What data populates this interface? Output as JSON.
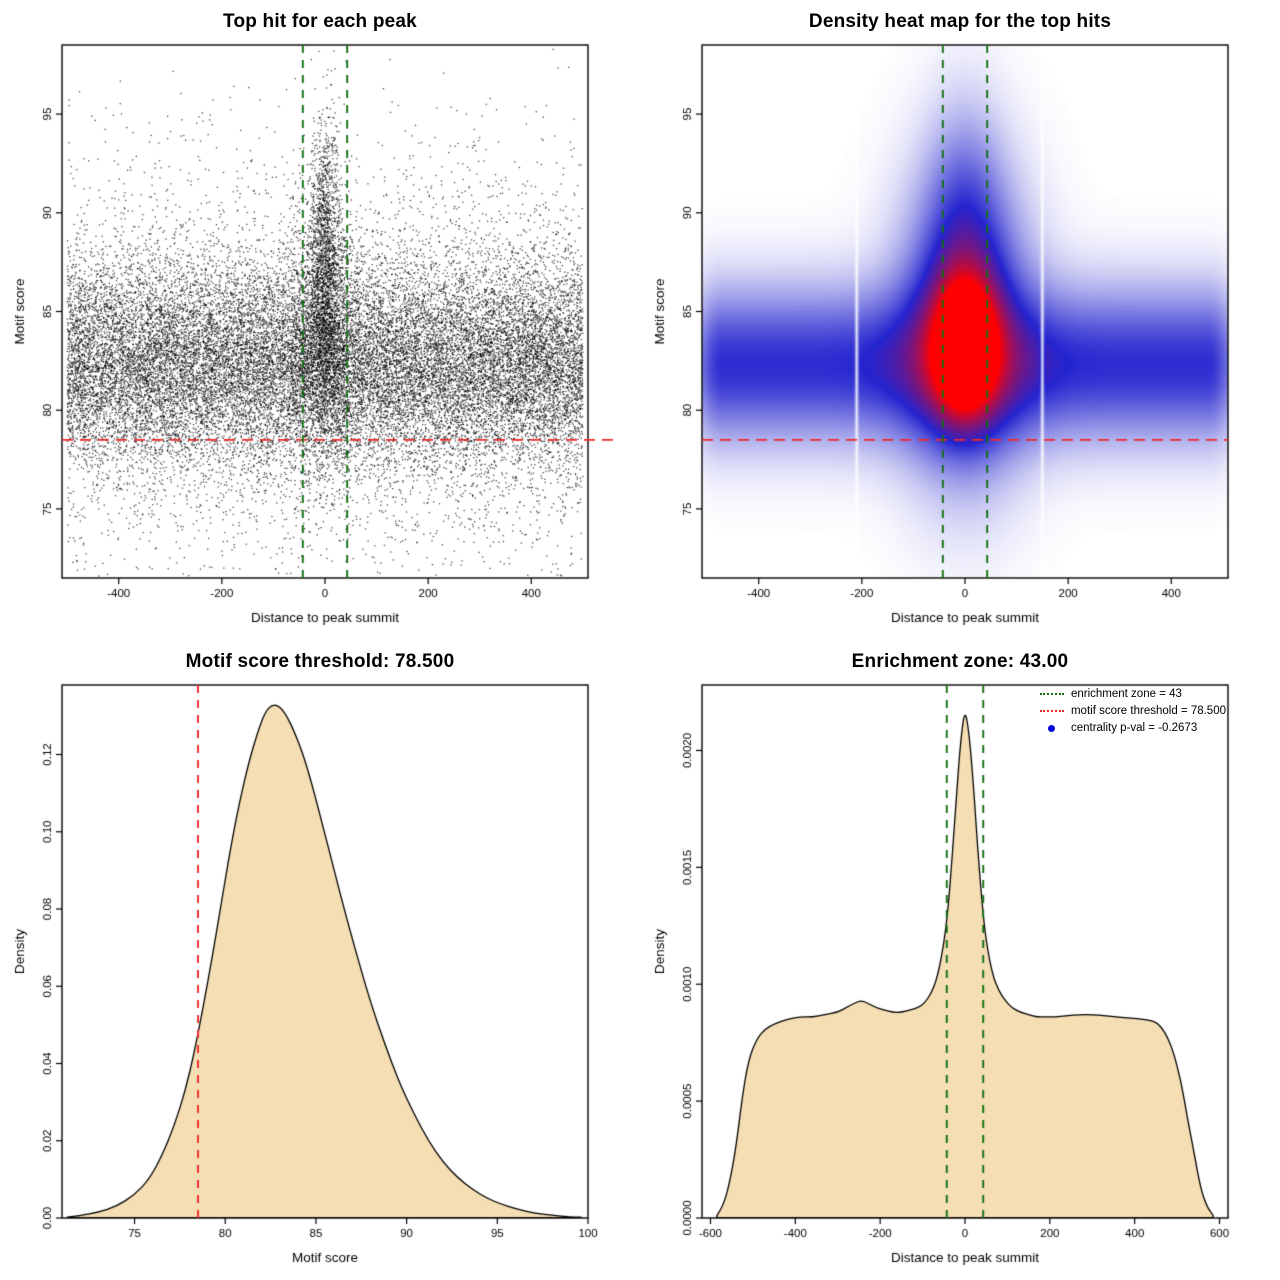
{
  "palette": {
    "background": "#ffffff",
    "point_color": "#000000",
    "red_line": "#ef2929",
    "green_line": "#127012",
    "blue_point": "#0000dd",
    "density_fill": "#f5deb3",
    "curve_stroke": "#000000",
    "heat_low": "#ffffff",
    "heat_mid": "#2424cf",
    "heat_high": "#ff0000"
  },
  "chart_data": [
    {
      "type": "scatter",
      "title": "Top hit for each peak",
      "xlabel": "Distance to peak summit",
      "ylabel": "Motif score",
      "xlim": [
        -510,
        510
      ],
      "ylim": [
        71.5,
        98.5
      ],
      "xticks": [
        -400,
        -200,
        0,
        200,
        400
      ],
      "yticks": [
        75,
        80,
        85,
        90,
        95
      ],
      "grid": false,
      "hline": {
        "y": 78.5,
        "style": "dashed",
        "color_key": "red_line",
        "meaning": "motif score threshold = 78.500"
      },
      "vlines": {
        "x": [
          -43,
          43
        ],
        "style": "dashed",
        "color_key": "green_line",
        "meaning": "enrichment zone = 43"
      },
      "points": {
        "seed": 11,
        "x_range": [
          -500,
          500
        ],
        "y_range": [
          71.6,
          98.4
        ],
        "background": {
          "n": 26000,
          "y_mean": 82.3,
          "y_sd": 2.6,
          "wide_frac": 0.18,
          "y_sd_wide": 5.6
        },
        "central": [
          {
            "n": 2200,
            "x_sd": 32,
            "y_mean": 83.6,
            "y_sd": 3.2
          },
          {
            "n": 1400,
            "x_sd": 15,
            "y_mean": 88.3,
            "y_sd": 3.4
          }
        ]
      }
    },
    {
      "type": "heatmap",
      "title": "Density heat map for the top hits",
      "xlabel": "Distance to peak summit",
      "ylabel": "Motif score",
      "xlim": [
        -510,
        510
      ],
      "ylim": [
        71.5,
        98.5
      ],
      "xticks": [
        -400,
        -200,
        0,
        200,
        400
      ],
      "yticks": [
        75,
        80,
        85,
        90,
        95
      ],
      "hline": {
        "y": 78.5,
        "style": "dashed",
        "color_key": "red_line"
      },
      "vlines": {
        "x": [
          -43,
          43
        ],
        "style": "dashed",
        "color_key": "green_line"
      },
      "gamma": 0.85,
      "band": {
        "amp": 0.42,
        "y0": 82.3,
        "sy": 2.5,
        "edge": 470,
        "edge_soft": 40
      },
      "kernels": [
        {
          "name": "halo",
          "amp": 0.55,
          "sx": 80,
          "y0": 84.2,
          "sy": 4.7
        },
        {
          "name": "upper-halo",
          "amp": 0.2,
          "sx": 50,
          "y0": 90.0,
          "sy": 3.6
        },
        {
          "name": "core",
          "amp": 0.9,
          "sx": 39,
          "y0": 83.2,
          "sy": 2.25
        }
      ],
      "white_streaks": [
        -210,
        150
      ]
    },
    {
      "type": "area",
      "title": "Motif score threshold: 78.500",
      "xlabel": "Motif score",
      "ylabel": "Density",
      "xlim": [
        71,
        100
      ],
      "ylim": [
        0,
        0.138
      ],
      "xticks": [
        75,
        80,
        85,
        90,
        95,
        100
      ],
      "yticks": [
        0,
        0.02,
        0.04,
        0.06,
        0.08,
        0.1,
        0.12
      ],
      "ytick_labels": [
        "0.00",
        "0.02",
        "0.04",
        "0.06",
        "0.08",
        "0.10",
        "0.12"
      ],
      "vlines": {
        "x": [
          78.5
        ],
        "style": "dashed",
        "color_key": "red_line",
        "meaning": "motif score threshold"
      },
      "curve": {
        "x": [
          71.3,
          72,
          73,
          74,
          75,
          75.8,
          76.5,
          77.2,
          77.8,
          78.3,
          78.8,
          79.3,
          79.8,
          80.3,
          80.8,
          81.3,
          81.8,
          82.2,
          82.6,
          83.0,
          83.4,
          83.8,
          84.3,
          84.8,
          85.3,
          85.9,
          86.5,
          87.2,
          88.0,
          88.8,
          89.6,
          90.4,
          91.2,
          92.0,
          92.8,
          93.6,
          94.4,
          95.2,
          96.0,
          97.0,
          98.0,
          99.0,
          99.6
        ],
        "y": [
          0.0002,
          0.0006,
          0.0015,
          0.003,
          0.006,
          0.01,
          0.016,
          0.024,
          0.033,
          0.043,
          0.055,
          0.068,
          0.082,
          0.096,
          0.108,
          0.118,
          0.126,
          0.131,
          0.133,
          0.1325,
          0.13,
          0.126,
          0.12,
          0.112,
          0.103,
          0.092,
          0.081,
          0.069,
          0.056,
          0.045,
          0.035,
          0.027,
          0.02,
          0.0145,
          0.0105,
          0.0075,
          0.0052,
          0.0036,
          0.0024,
          0.0013,
          0.0007,
          0.0003,
          0.0002
        ]
      }
    },
    {
      "type": "area",
      "title": "Enrichment zone: 43.00",
      "xlabel": "Distance to peak summit",
      "ylabel": "Density",
      "xlim": [
        -620,
        620
      ],
      "ylim": [
        0,
        0.00228
      ],
      "xticks": [
        -600,
        -400,
        -200,
        0,
        200,
        400,
        600
      ],
      "yticks": [
        0,
        0.0005,
        0.001,
        0.0015,
        0.002
      ],
      "ytick_labels": [
        "0.0000",
        "0.0005",
        "0.0010",
        "0.0015",
        "0.0020"
      ],
      "vlines": {
        "x": [
          -43,
          43
        ],
        "style": "dashed",
        "color_key": "green_line",
        "meaning": "enrichment zone"
      },
      "curve": {
        "x": [
          -585,
          -570,
          -555,
          -540,
          -525,
          -510,
          -490,
          -470,
          -450,
          -420,
          -390,
          -360,
          -330,
          -300,
          -280,
          -260,
          -245,
          -230,
          -210,
          -190,
          -170,
          -150,
          -130,
          -110,
          -95,
          -80,
          -65,
          -50,
          -40,
          -30,
          -20,
          -10,
          0,
          10,
          20,
          30,
          40,
          50,
          65,
          80,
          95,
          110,
          130,
          150,
          170,
          190,
          210,
          240,
          270,
          300,
          330,
          360,
          390,
          420,
          450,
          470,
          490,
          510,
          525,
          540,
          555,
          570,
          585
        ],
        "y": [
          1e-05,
          5e-05,
          0.00015,
          0.0003,
          0.00052,
          0.00068,
          0.00077,
          0.00081,
          0.00083,
          0.00085,
          0.00086,
          0.00086,
          0.00087,
          0.00088,
          0.0009,
          0.00092,
          0.00093,
          0.00092,
          0.0009,
          0.00089,
          0.00088,
          0.00088,
          0.00089,
          0.0009,
          0.00092,
          0.00096,
          0.00103,
          0.00117,
          0.00132,
          0.00155,
          0.00181,
          0.00205,
          0.00218,
          0.00207,
          0.00185,
          0.00158,
          0.00135,
          0.00118,
          0.00104,
          0.00097,
          0.00093,
          0.0009,
          0.00088,
          0.00087,
          0.00086,
          0.00086,
          0.00086,
          0.000865,
          0.00087,
          0.00087,
          0.000865,
          0.00086,
          0.000855,
          0.00085,
          0.00084,
          0.0008,
          0.00072,
          0.00058,
          0.00042,
          0.00028,
          0.00013,
          5e-05,
          1e-05
        ]
      },
      "legend": {
        "position": "topright",
        "items": [
          {
            "symbol": "dotted-line",
            "color": "#127012",
            "label": "enrichment zone = 43"
          },
          {
            "symbol": "dotted-line",
            "color": "#ef2929",
            "label": "motif score threshold = 78.500"
          },
          {
            "symbol": "point",
            "color": "#0000dd",
            "label": "centrality p-val = -0.2673"
          }
        ]
      }
    }
  ]
}
